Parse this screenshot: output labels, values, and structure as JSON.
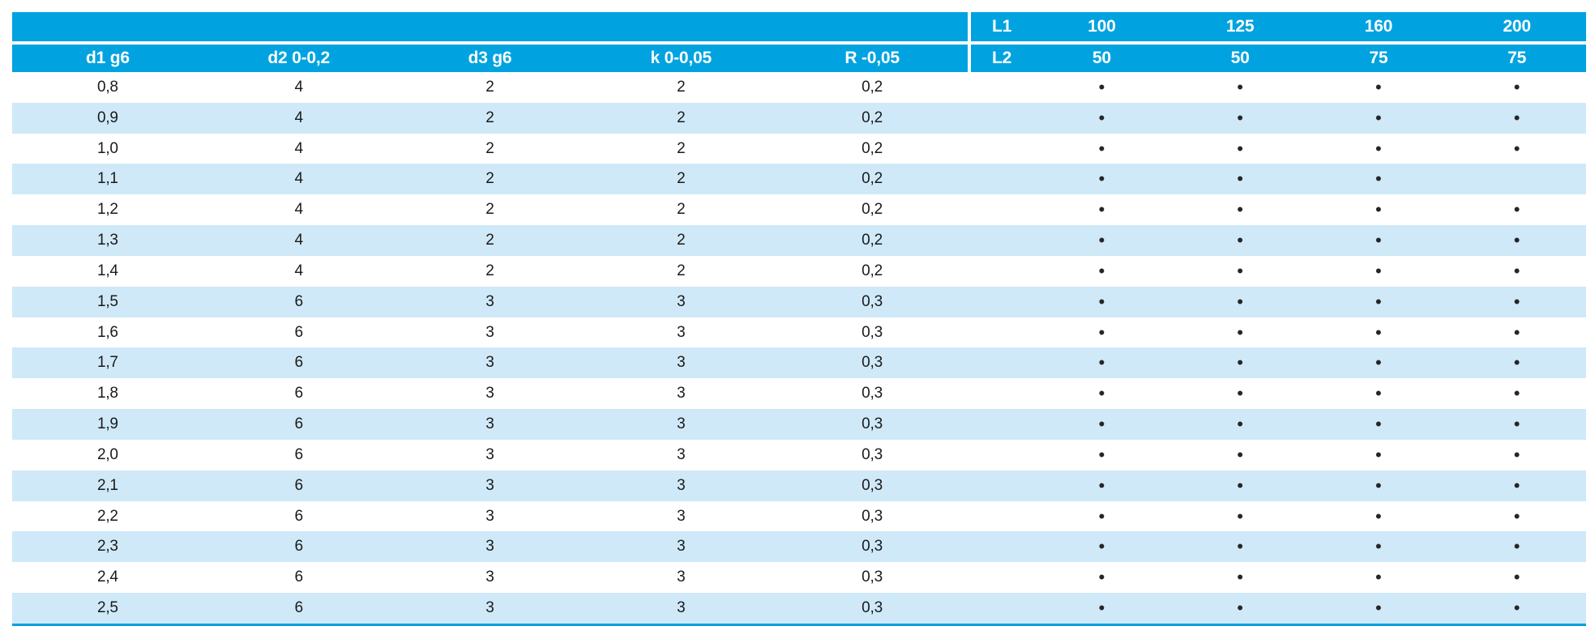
{
  "colors": {
    "header_bg": "#00a3e0",
    "zebra_row_bg": "#cfe9f8",
    "header_text": "#ffffff",
    "body_text": "#1a1a1a",
    "bottom_border": "#00a3e0"
  },
  "table": {
    "bullet": "•",
    "header": {
      "columns": [
        "d1 g6",
        "d2 0-0,2",
        "d3 g6",
        "k 0-0,05",
        "R -0,05"
      ],
      "l1_label": "L1",
      "l1_values": [
        "100",
        "125",
        "160",
        "200"
      ],
      "l2_label": "L2",
      "l2_values": [
        "50",
        "50",
        "75",
        "75"
      ]
    },
    "rows": [
      {
        "values": [
          "0,8",
          "4",
          "2",
          "2",
          "0,2"
        ],
        "dots": [
          1,
          1,
          1,
          1
        ]
      },
      {
        "values": [
          "0,9",
          "4",
          "2",
          "2",
          "0,2"
        ],
        "dots": [
          1,
          1,
          1,
          1
        ]
      },
      {
        "values": [
          "1,0",
          "4",
          "2",
          "2",
          "0,2"
        ],
        "dots": [
          1,
          1,
          1,
          1
        ]
      },
      {
        "values": [
          "1,1",
          "4",
          "2",
          "2",
          "0,2"
        ],
        "dots": [
          1,
          1,
          1,
          0
        ]
      },
      {
        "values": [
          "1,2",
          "4",
          "2",
          "2",
          "0,2"
        ],
        "dots": [
          1,
          1,
          1,
          1
        ]
      },
      {
        "values": [
          "1,3",
          "4",
          "2",
          "2",
          "0,2"
        ],
        "dots": [
          1,
          1,
          1,
          1
        ]
      },
      {
        "values": [
          "1,4",
          "4",
          "2",
          "2",
          "0,2"
        ],
        "dots": [
          1,
          1,
          1,
          1
        ]
      },
      {
        "values": [
          "1,5",
          "6",
          "3",
          "3",
          "0,3"
        ],
        "dots": [
          1,
          1,
          1,
          1
        ]
      },
      {
        "values": [
          "1,6",
          "6",
          "3",
          "3",
          "0,3"
        ],
        "dots": [
          1,
          1,
          1,
          1
        ]
      },
      {
        "values": [
          "1,7",
          "6",
          "3",
          "3",
          "0,3"
        ],
        "dots": [
          1,
          1,
          1,
          1
        ]
      },
      {
        "values": [
          "1,8",
          "6",
          "3",
          "3",
          "0,3"
        ],
        "dots": [
          1,
          1,
          1,
          1
        ]
      },
      {
        "values": [
          "1,9",
          "6",
          "3",
          "3",
          "0,3"
        ],
        "dots": [
          1,
          1,
          1,
          1
        ]
      },
      {
        "values": [
          "2,0",
          "6",
          "3",
          "3",
          "0,3"
        ],
        "dots": [
          1,
          1,
          1,
          1
        ]
      },
      {
        "values": [
          "2,1",
          "6",
          "3",
          "3",
          "0,3"
        ],
        "dots": [
          1,
          1,
          1,
          1
        ]
      },
      {
        "values": [
          "2,2",
          "6",
          "3",
          "3",
          "0,3"
        ],
        "dots": [
          1,
          1,
          1,
          1
        ]
      },
      {
        "values": [
          "2,3",
          "6",
          "3",
          "3",
          "0,3"
        ],
        "dots": [
          1,
          1,
          1,
          1
        ]
      },
      {
        "values": [
          "2,4",
          "6",
          "3",
          "3",
          "0,3"
        ],
        "dots": [
          1,
          1,
          1,
          1
        ]
      },
      {
        "values": [
          "2,5",
          "6",
          "3",
          "3",
          "0,3"
        ],
        "dots": [
          1,
          1,
          1,
          1
        ]
      }
    ]
  }
}
